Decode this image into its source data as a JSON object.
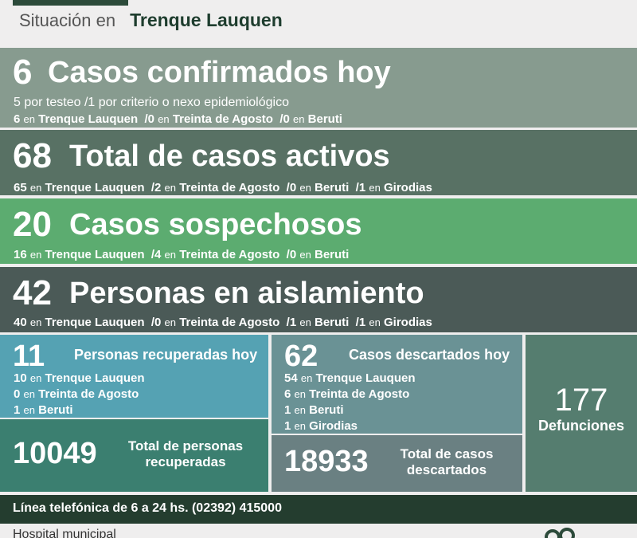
{
  "header": {
    "prefix": "Situación en",
    "city": "Trenque Lauquen"
  },
  "confirmados": {
    "value": "6",
    "title": "Casos confirmados hoy",
    "line1": "5 por testeo  /1 por criterio o nexo epidemiológico",
    "line2": [
      {
        "n": "6",
        "place": "Trenque Lauquen"
      },
      {
        "n": "/0",
        "place": "Treinta de Agosto"
      },
      {
        "n": "/0",
        "place": "Beruti"
      }
    ]
  },
  "activos": {
    "value": "68",
    "title": "Total de casos activos",
    "line": [
      {
        "n": "65",
        "place": "Trenque Lauquen"
      },
      {
        "n": "/2",
        "place": "Treinta de Agosto"
      },
      {
        "n": "/0",
        "place": "Beruti"
      },
      {
        "n": "/1",
        "place": "Girodias"
      }
    ]
  },
  "sospechosos": {
    "value": "20",
    "title": "Casos sospechosos",
    "line": [
      {
        "n": "16",
        "place": "Trenque Lauquen"
      },
      {
        "n": "/4",
        "place": "Treinta de Agosto"
      },
      {
        "n": "/0",
        "place": "Beruti"
      }
    ]
  },
  "aislamiento": {
    "value": "42",
    "title": "Personas en aislamiento",
    "line": [
      {
        "n": "40",
        "place": "Trenque Lauquen"
      },
      {
        "n": "/0",
        "place": "Treinta de Agosto"
      },
      {
        "n": "/1",
        "place": "Beruti"
      },
      {
        "n": "/1",
        "place": "Girodias"
      }
    ]
  },
  "en_word": "en",
  "recuperados": {
    "value": "11",
    "title": "Personas recuperadas hoy",
    "rows": [
      {
        "n": "10",
        "place": "Trenque Lauquen"
      },
      {
        "n": "0",
        "place": "Treinta de Agosto"
      },
      {
        "n": "1",
        "place": "Beruti"
      }
    ],
    "total_value": "10049",
    "total_label_1": "Total de personas",
    "total_label_2": "recuperadas"
  },
  "descartados": {
    "value": "62",
    "title": "Casos descartados hoy",
    "rows": [
      {
        "n": "54",
        "place": "Trenque Lauquen"
      },
      {
        "n": "6",
        "place": "Treinta de Agosto"
      },
      {
        "n": "1",
        "place": "Beruti"
      },
      {
        "n": "1",
        "place": "Girodias"
      }
    ],
    "total_value": "18933",
    "total_label_1": "Total de casos",
    "total_label_2": "descartados"
  },
  "defunciones": {
    "value": "177",
    "label": "Defunciones"
  },
  "phone": "Línea telefónica de 6 a 24 hs. (02392) 415000",
  "hospital": "Hospital municipal",
  "colors": {
    "dark_green": "#243d2f",
    "accent_green": "#5cac70"
  }
}
